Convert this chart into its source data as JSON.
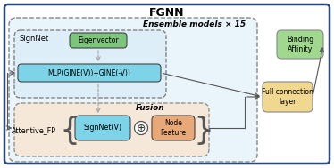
{
  "title": "FGNN",
  "outer_border_color": "#2b4a7a",
  "outer_bg": "#ffffff",
  "ensemble_label": "Ensemble models × 15",
  "ensemble_bg": "#e8f4fb",
  "ensemble_border": "#888888",
  "fusion_label": "Fusion",
  "fusion_bg": "#f5e8d8",
  "fusion_border": "#888888",
  "signnet_label": "SignNet",
  "signnet_bg": "#deeef8",
  "signnet_border": "#666666",
  "eigenvector_label": "Eigenvector",
  "eigenvector_bg": "#7dc47d",
  "eigenvector_border": "#444444",
  "mlp_label": "MLP(GINE(V))+GINE(-V))",
  "mlp_bg": "#7dd4e8",
  "mlp_border": "#444444",
  "full_conn_label": "Full connection\nlayer",
  "full_conn_bg": "#f0d890",
  "full_conn_border": "#888888",
  "binding_label": "Binding\nAffinity",
  "binding_bg": "#a0d890",
  "binding_border": "#888888",
  "attentive_fp_label": "Attentive_FP",
  "signnet_v_label": "SignNet(V)",
  "signnet_v_bg": "#7dd4e8",
  "signnet_v_border": "#444444",
  "node_feature_label": "Node\nFeature",
  "node_feature_bg": "#e8a878",
  "node_feature_border": "#444444",
  "arrow_color": "#555555",
  "dashed_color": "#999999"
}
